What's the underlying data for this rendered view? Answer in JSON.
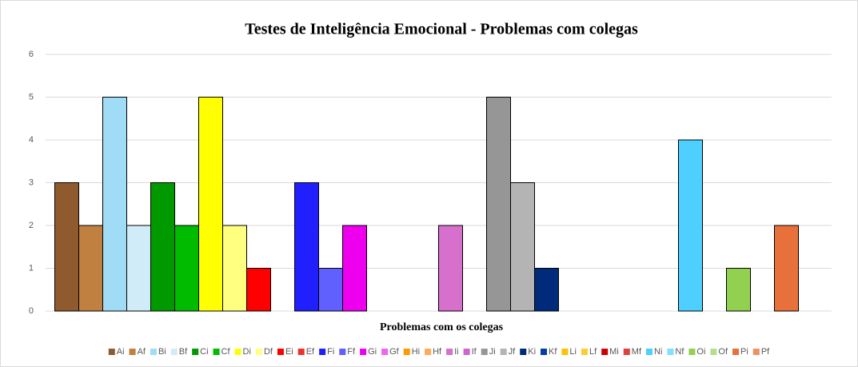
{
  "chart_data": {
    "type": "bar",
    "title": "Testes de Inteligência Emocional - Problemas com colegas",
    "x_label": "Problemas com os colegas",
    "categories": [
      null
    ],
    "ylim": [
      0,
      6
    ],
    "yticks": [
      0,
      1,
      2,
      3,
      4,
      5,
      6
    ],
    "grid": true,
    "legend": "bottom",
    "series": [
      {
        "name": "Ai",
        "color": "#8f5b2e",
        "values": [
          3
        ]
      },
      {
        "name": "Af",
        "color": "#c0803f",
        "values": [
          2
        ]
      },
      {
        "name": "Bi",
        "color": "#a0dcf5",
        "values": [
          5
        ]
      },
      {
        "name": "Bf",
        "color": "#d0ecf8",
        "values": [
          2
        ]
      },
      {
        "name": "Ci",
        "color": "#009900",
        "values": [
          3
        ]
      },
      {
        "name": "Cf",
        "color": "#00bb00",
        "values": [
          2
        ]
      },
      {
        "name": "Di",
        "color": "#ffff00",
        "values": [
          5
        ]
      },
      {
        "name": "Df",
        "color": "#ffff80",
        "values": [
          2
        ]
      },
      {
        "name": "Ei",
        "color": "#ff0000",
        "values": [
          1
        ]
      },
      {
        "name": "Ef",
        "color": "#ee3030",
        "values": [
          0
        ]
      },
      {
        "name": "Fi",
        "color": "#2020ff",
        "values": [
          3
        ]
      },
      {
        "name": "Ff",
        "color": "#6060ff",
        "values": [
          1
        ]
      },
      {
        "name": "Gi",
        "color": "#ee00ee",
        "values": [
          2
        ]
      },
      {
        "name": "Gf",
        "color": "#ee66ee",
        "values": [
          0
        ]
      },
      {
        "name": "Hi",
        "color": "#ff9900",
        "values": [
          0
        ]
      },
      {
        "name": "Hf",
        "color": "#ffaa55",
        "values": [
          0
        ]
      },
      {
        "name": "Ii",
        "color": "#d670cc",
        "values": [
          2
        ]
      },
      {
        "name": "If",
        "color": "#cc66cc",
        "values": [
          0
        ]
      },
      {
        "name": "Ji",
        "color": "#969696",
        "values": [
          5
        ]
      },
      {
        "name": "Jf",
        "color": "#b4b4b4",
        "values": [
          3
        ]
      },
      {
        "name": "Ki",
        "color": "#002a7a",
        "values": [
          1
        ]
      },
      {
        "name": "Kf",
        "color": "#0040a0",
        "values": [
          0
        ]
      },
      {
        "name": "Li",
        "color": "#ffc000",
        "values": [
          0
        ]
      },
      {
        "name": "Lf",
        "color": "#ffcc33",
        "values": [
          0
        ]
      },
      {
        "name": "Mi",
        "color": "#cc0000",
        "values": [
          0
        ]
      },
      {
        "name": "Mf",
        "color": "#e04040",
        "values": [
          0
        ]
      },
      {
        "name": "Ni",
        "color": "#4dcfff",
        "values": [
          4
        ]
      },
      {
        "name": "Nf",
        "color": "#80e0ff",
        "values": [
          0
        ]
      },
      {
        "name": "Oi",
        "color": "#92d050",
        "values": [
          1
        ]
      },
      {
        "name": "Of",
        "color": "#b0e090",
        "values": [
          0
        ]
      },
      {
        "name": "Pi",
        "color": "#e8703a",
        "values": [
          2
        ]
      },
      {
        "name": "Pf",
        "color": "#f09060",
        "values": [
          0
        ]
      }
    ]
  }
}
